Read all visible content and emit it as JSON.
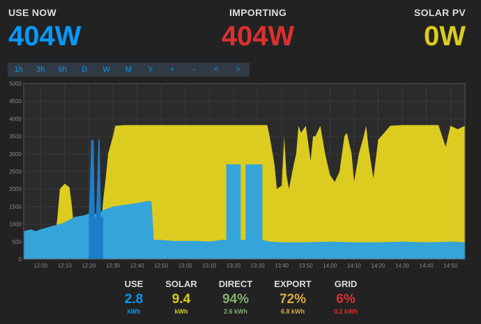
{
  "header": {
    "use_now": {
      "label": "USE NOW",
      "value": "404W",
      "color": "#0699fa"
    },
    "importing": {
      "label": "IMPORTING",
      "value": "404W",
      "color": "#dc3030"
    },
    "solar_pv": {
      "label": "SOLAR PV",
      "value": "0W",
      "color": "#dccc1f"
    }
  },
  "toolbar": {
    "buttons": [
      "1h",
      "3h",
      "6h",
      "D",
      "W",
      "M",
      "Y",
      "+",
      "-",
      "<",
      ">"
    ]
  },
  "chart_data": {
    "type": "area",
    "xlabel": "",
    "ylabel": "",
    "ylim": [
      0,
      5000
    ],
    "xlim": [
      "11:53",
      "14:56"
    ],
    "grid": true,
    "y_ticks": [
      "0",
      "500",
      "1000",
      "1500",
      "2000",
      "2500",
      "3000",
      "3500",
      "4000",
      "4500",
      "5000"
    ],
    "x_ticks": [
      "12:00",
      "12:10",
      "12:20",
      "12:30",
      "12:40",
      "12:50",
      "13:00",
      "13:10",
      "13:20",
      "13:30",
      "13:40",
      "13:50",
      "14:00",
      "14:10",
      "14:20",
      "14:30",
      "14:40",
      "14:50"
    ],
    "colors": {
      "solar": "#dccc1f",
      "use": "#35a4d8",
      "use_dark": "#1d7dc8",
      "background": "#2b2b2b",
      "grid": "#3a3a3a"
    },
    "series": [
      {
        "key": "solar",
        "color": "#dccc1f",
        "x": [
          "11:53",
          "12:00",
          "12:05",
          "12:07",
          "12:08",
          "12:10",
          "12:12",
          "12:13",
          "12:15",
          "12:20",
          "12:24",
          "12:26",
          "12:27",
          "12:28",
          "12:30",
          "12:31",
          "12:35",
          "12:40",
          "12:45",
          "12:50",
          "13:00",
          "13:10",
          "13:20",
          "13:30",
          "13:34",
          "13:35",
          "13:36",
          "13:37",
          "13:38",
          "13:40",
          "13:41",
          "13:42",
          "13:43",
          "13:45",
          "13:46",
          "13:47",
          "13:48",
          "13:50",
          "13:52",
          "13:53",
          "13:54",
          "13:56",
          "13:58",
          "14:00",
          "14:02",
          "14:04",
          "14:06",
          "14:07",
          "14:09",
          "14:10",
          "14:12",
          "14:14",
          "14:15",
          "14:16",
          "14:18",
          "14:20",
          "14:25",
          "14:30",
          "14:35",
          "14:40",
          "14:45",
          "14:48",
          "14:50",
          "14:53",
          "14:56"
        ],
        "y": [
          0,
          0,
          0,
          1200,
          2000,
          2150,
          2050,
          1500,
          0,
          0,
          0,
          1700,
          2300,
          3000,
          3500,
          3800,
          3820,
          3820,
          3820,
          3820,
          3820,
          3820,
          3820,
          3820,
          3820,
          3500,
          3100,
          2700,
          2000,
          2100,
          3500,
          2400,
          2000,
          2700,
          3000,
          3800,
          3600,
          3800,
          2800,
          3500,
          3500,
          3800,
          3000,
          2400,
          2200,
          2500,
          3500,
          3600,
          3000,
          2200,
          3000,
          3500,
          3800,
          3200,
          2300,
          3400,
          3800,
          3820,
          3820,
          3820,
          3820,
          3200,
          3800,
          3700,
          3800
        ]
      },
      {
        "key": "use",
        "color": "#35a4d8",
        "x": [
          "11:53",
          "11:56",
          "11:58",
          "12:00",
          "12:05",
          "12:08",
          "12:10",
          "12:14",
          "12:18",
          "12:20",
          "12:24",
          "12:26",
          "12:28",
          "12:30",
          "12:35",
          "12:40",
          "12:44",
          "12:46",
          "12:47",
          "12:50",
          "12:55",
          "13:00",
          "13:05",
          "13:10",
          "13:15",
          "13:17",
          "13:17",
          "13:20",
          "13:23",
          "13:23",
          "13:25",
          "13:25",
          "13:30",
          "13:32",
          "13:32",
          "13:35",
          "13:40",
          "13:50",
          "14:00",
          "14:10",
          "14:20",
          "14:30",
          "14:40",
          "14:50",
          "14:56"
        ],
        "y": [
          800,
          850,
          800,
          850,
          950,
          1000,
          1050,
          1200,
          1250,
          1300,
          1300,
          1400,
          1450,
          1500,
          1550,
          1600,
          1650,
          1650,
          550,
          550,
          520,
          520,
          520,
          500,
          550,
          550,
          2700,
          2700,
          2700,
          550,
          550,
          2700,
          2700,
          2700,
          550,
          500,
          480,
          480,
          500,
          480,
          480,
          500,
          480,
          500,
          480
        ]
      },
      {
        "key": "use_dark",
        "color": "#1d7dc8",
        "x": [
          "12:20",
          "12:21",
          "12:22",
          "12:22.5",
          "12:23",
          "12:24",
          "12:24.5",
          "12:25",
          "12:26"
        ],
        "y": [
          1200,
          3400,
          3400,
          1200,
          1200,
          3400,
          3400,
          1200,
          1200
        ]
      }
    ]
  },
  "summary": [
    {
      "title": "USE",
      "value": "2.8",
      "unit": "kWh",
      "color": "#0699fa"
    },
    {
      "title": "SOLAR",
      "value": "9.4",
      "unit": "kWh",
      "color": "#dccc1f"
    },
    {
      "title": "DIRECT",
      "value": "94%",
      "unit": "2.6 kWh",
      "color": "#82b06a"
    },
    {
      "title": "EXPORT",
      "value": "72%",
      "unit": "6.8 kWh",
      "color": "#dcaa45"
    },
    {
      "title": "GRID",
      "value": "6%",
      "unit": "0.2 kWh",
      "color": "#dc3030"
    }
  ]
}
